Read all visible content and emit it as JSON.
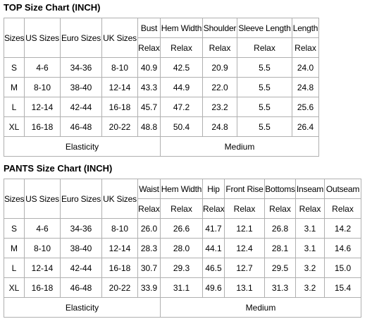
{
  "top": {
    "title": "TOP Size Chart (INCH)",
    "columns": [
      "Sizes",
      "US Sizes",
      "Euro Sizes",
      "UK Sizes",
      "Bust",
      "Hem Width",
      "Shoulder",
      "Sleeve Length",
      "Length"
    ],
    "fit": [
      "Relax",
      "Relax",
      "Relax",
      "Relax",
      "Relax"
    ],
    "rows": [
      [
        "S",
        "4-6",
        "34-36",
        "8-10",
        "40.9",
        "42.5",
        "20.9",
        "5.5",
        "24.0"
      ],
      [
        "M",
        "8-10",
        "38-40",
        "12-14",
        "43.3",
        "44.9",
        "22.0",
        "5.5",
        "24.8"
      ],
      [
        "L",
        "12-14",
        "42-44",
        "16-18",
        "45.7",
        "47.2",
        "23.2",
        "5.5",
        "25.6"
      ],
      [
        "XL",
        "16-18",
        "46-48",
        "20-22",
        "48.8",
        "50.4",
        "24.8",
        "5.5",
        "26.4"
      ]
    ],
    "footer": [
      "Elasticity",
      "Medium"
    ]
  },
  "pants": {
    "title": "PANTS Size Chart (INCH)",
    "columns": [
      "Sizes",
      "US Sizes",
      "Euro Sizes",
      "UK Sizes",
      "Waist",
      "Hem Width",
      "Hip",
      "Front Rise",
      "Bottoms",
      "Inseam",
      "Outseam"
    ],
    "fit": [
      "Relax",
      "Relax",
      "Relax",
      "Relax",
      "Relax",
      "Relax",
      "Relax"
    ],
    "rows": [
      [
        "S",
        "4-6",
        "34-36",
        "8-10",
        "26.0",
        "26.6",
        "41.7",
        "12.1",
        "26.8",
        "3.1",
        "14.2"
      ],
      [
        "M",
        "8-10",
        "38-40",
        "12-14",
        "28.3",
        "28.0",
        "44.1",
        "12.4",
        "28.1",
        "3.1",
        "14.6"
      ],
      [
        "L",
        "12-14",
        "42-44",
        "16-18",
        "30.7",
        "29.3",
        "46.5",
        "12.7",
        "29.5",
        "3.2",
        "15.0"
      ],
      [
        "XL",
        "16-18",
        "46-48",
        "20-22",
        "33.9",
        "31.1",
        "49.6",
        "13.1",
        "31.3",
        "3.2",
        "15.4"
      ]
    ],
    "footer": [
      "Elasticity",
      "Medium"
    ]
  }
}
